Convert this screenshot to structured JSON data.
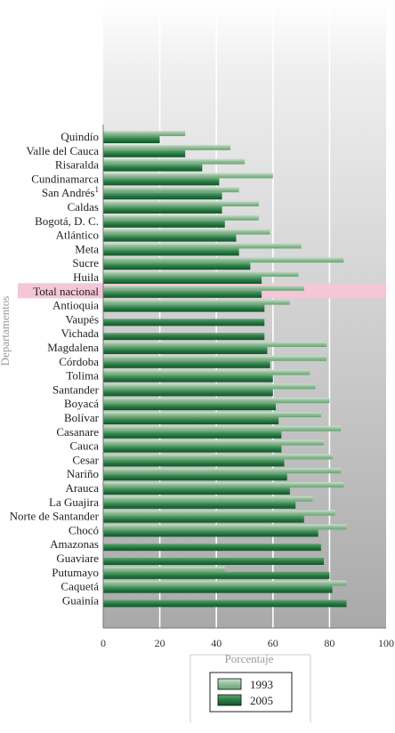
{
  "chart_data": {
    "type": "bar",
    "orientation": "horizontal",
    "xlabel": "Porcentaje",
    "ylabel": "Departamentos",
    "xlim": [
      0,
      100
    ],
    "x_ticks": [
      "0",
      "20",
      "40",
      "60",
      "80",
      "100"
    ],
    "grid": true,
    "legend_position": "bottom",
    "categories": [
      "Quindío",
      "Valle del Cauca",
      "Risaralda",
      "Cundinamarca",
      "San Andrés",
      "Caldas",
      "Bogotá, D. C.",
      "Atlántico",
      "Meta",
      "Sucre",
      "Huila",
      "Total nacional",
      "Antioquia",
      "Vaupés",
      "Vichada",
      "Magdalena",
      "Córdoba",
      "Tolima",
      "Santander",
      "Boyacá",
      "Bolívar",
      "Casanare",
      "Cauca",
      "Cesar",
      "Nariño",
      "Arauca",
      "La Guajira",
      "Norte de Santander",
      "Chocó",
      "Amazonas",
      "Guaviare",
      "Putumayo",
      "Caquetá",
      "Guainía"
    ],
    "category_superscripts": {
      "San Andrés": "1"
    },
    "highlight_category": "Total nacional",
    "series": [
      {
        "name": "1993",
        "values": [
          29,
          45,
          50,
          60,
          48,
          55,
          55,
          59,
          70,
          85,
          69,
          71,
          66,
          null,
          null,
          79,
          79,
          73,
          75,
          80,
          77,
          84,
          78,
          81,
          84,
          85,
          74,
          82,
          86,
          null,
          null,
          43,
          86,
          null
        ]
      },
      {
        "name": "2005",
        "values": [
          20,
          29,
          35,
          41,
          42,
          42,
          43,
          47,
          48,
          52,
          56,
          56,
          57,
          57,
          57,
          58,
          59,
          60,
          60,
          61,
          62,
          63,
          63,
          64,
          65,
          66,
          68,
          71,
          76,
          77,
          78,
          80,
          81,
          86
        ]
      }
    ],
    "colors": {
      "series_1993": "#8fbf96",
      "series_2005": "#2a7a44",
      "highlight_band": "#f4c6d7"
    }
  }
}
